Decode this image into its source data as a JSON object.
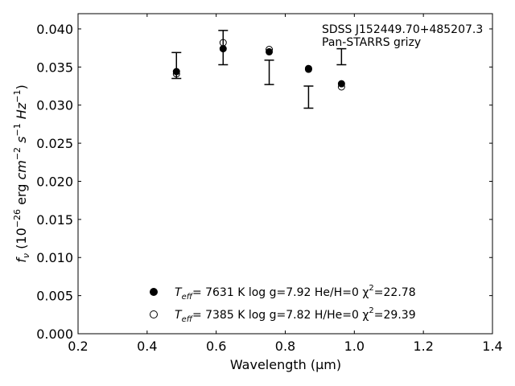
{
  "chart_data": {
    "type": "scatter",
    "xlabel": "Wavelength (μm)",
    "ylabel": "f_ν (10^-26 erg cm^-2 s^-1 Hz^-1)",
    "xlim": [
      0.2,
      1.4
    ],
    "ylim": [
      0.0,
      0.042
    ],
    "xticks": [
      "0.2",
      "0.4",
      "0.6",
      "0.8",
      "1.0",
      "1.2",
      "1.4"
    ],
    "yticks": [
      "0.000",
      "0.005",
      "0.010",
      "0.015",
      "0.020",
      "0.025",
      "0.030",
      "0.035",
      "0.040"
    ],
    "grid": false,
    "annotation": {
      "line1": "SDSS J152449.70+485207.3",
      "line2": "Pan-STARRS grizy"
    },
    "observed": {
      "x": [
        0.4849,
        0.6201,
        0.7535,
        0.8674,
        0.9628
      ],
      "y": [
        0.0345,
        0.0375,
        0.0343,
        0.031,
        0.0364
      ],
      "yerr_low": [
        0.0335,
        0.0353,
        0.0327,
        0.0296,
        0.0353
      ],
      "yerr_high": [
        0.0369,
        0.0398,
        0.0359,
        0.0325,
        0.0374
      ]
    },
    "series": [
      {
        "marker": "filled-circle",
        "x": [
          0.4849,
          0.6201,
          0.7535,
          0.8674,
          0.9628
        ],
        "y": [
          0.0344,
          0.0374,
          0.037,
          0.0348,
          0.0328
        ],
        "label": {
          "teff_sym": "T",
          "teff_sub": "eff",
          "teff_text": "=  7631 K  log g=7.92  He/H=0  χ",
          "chi_sup": "2",
          "chi_text": "=22.78"
        }
      },
      {
        "marker": "open-circle",
        "x": [
          0.4849,
          0.6201,
          0.7535,
          0.8674,
          0.9628
        ],
        "y": [
          0.0341,
          0.0382,
          0.0373,
          0.0347,
          0.0324
        ],
        "label": {
          "teff_sym": "T",
          "teff_sub": "eff",
          "teff_text": "=  7385 K  log g=7.82  H/He=0  χ",
          "chi_sup": "2",
          "chi_text": "=29.39"
        }
      }
    ]
  }
}
